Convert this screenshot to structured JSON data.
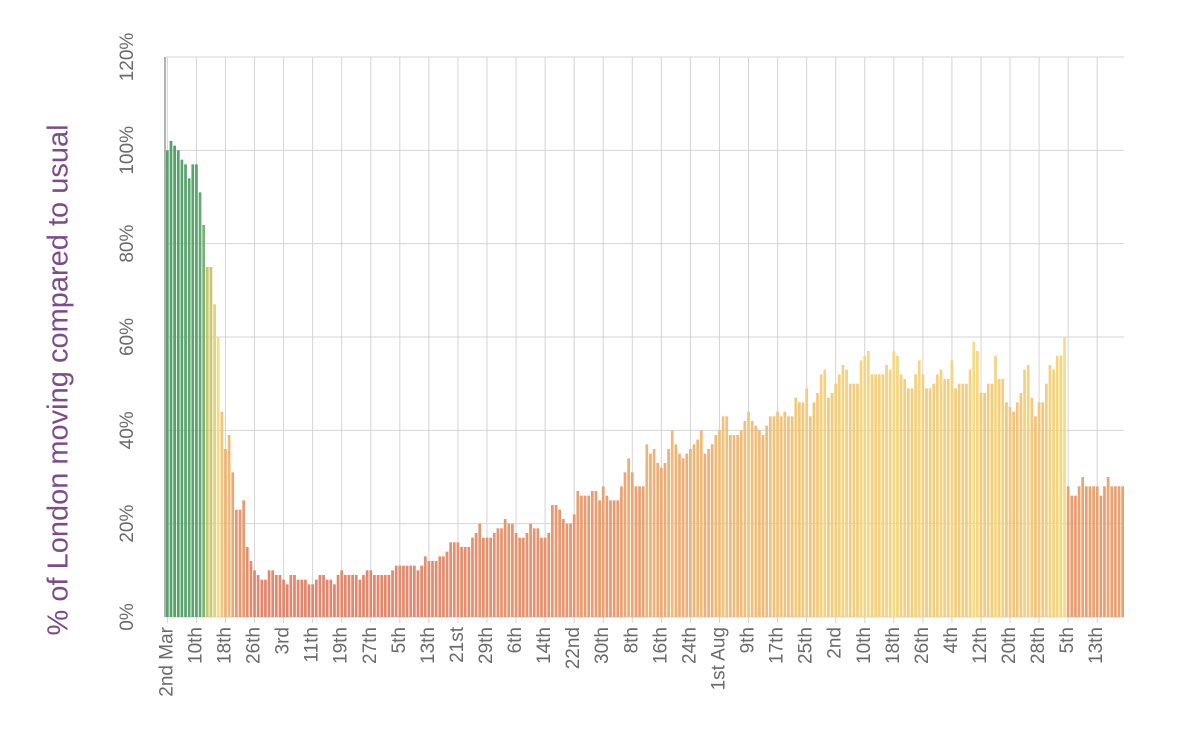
{
  "chart_data": {
    "type": "bar",
    "y_label": "% of London moving compared to usual",
    "categories": [
      "2nd Mar",
      null,
      null,
      null,
      null,
      null,
      null,
      null,
      "10th",
      null,
      null,
      null,
      null,
      null,
      null,
      null,
      "18th",
      null,
      null,
      null,
      null,
      null,
      null,
      null,
      "26th",
      null,
      null,
      null,
      null,
      null,
      null,
      null,
      "3rd",
      null,
      null,
      null,
      null,
      null,
      null,
      null,
      "11th",
      null,
      null,
      null,
      null,
      null,
      null,
      null,
      "19th",
      null,
      null,
      null,
      null,
      null,
      null,
      null,
      "27th",
      null,
      null,
      null,
      null,
      null,
      null,
      null,
      "5th",
      null,
      null,
      null,
      null,
      null,
      null,
      null,
      "13th",
      null,
      null,
      null,
      null,
      null,
      null,
      null,
      "21st",
      null,
      null,
      null,
      null,
      null,
      null,
      null,
      "29th",
      null,
      null,
      null,
      null,
      null,
      null,
      null,
      "6th",
      null,
      null,
      null,
      null,
      null,
      null,
      null,
      "14th",
      null,
      null,
      null,
      null,
      null,
      null,
      null,
      "22nd",
      null,
      null,
      null,
      null,
      null,
      null,
      null,
      "30th",
      null,
      null,
      null,
      null,
      null,
      null,
      null,
      "8th",
      null,
      null,
      null,
      null,
      null,
      null,
      null,
      "16th",
      null,
      null,
      null,
      null,
      null,
      null,
      null,
      "24th",
      null,
      null,
      null,
      null,
      null,
      null,
      null,
      "1st Aug",
      null,
      null,
      null,
      null,
      null,
      null,
      null,
      "9th",
      null,
      null,
      null,
      null,
      null,
      null,
      null,
      "17th",
      null,
      null,
      null,
      null,
      null,
      null,
      null,
      "25th",
      null,
      null,
      null,
      null,
      null,
      null,
      null,
      "2nd",
      null,
      null,
      null,
      null,
      null,
      null,
      null,
      "10th",
      null,
      null,
      null,
      null,
      null,
      null,
      null,
      "18th",
      null,
      null,
      null,
      null,
      null,
      null,
      null,
      "26th",
      null,
      null,
      null,
      null,
      null,
      null,
      null,
      "4th",
      null,
      null,
      null,
      null,
      null,
      null,
      null,
      "12th",
      null,
      null,
      null,
      null,
      null,
      null,
      null,
      "20th",
      null,
      null,
      null,
      null,
      null,
      null,
      null,
      "28th",
      null,
      null,
      null,
      null,
      null,
      null,
      null,
      "5th",
      null,
      null,
      null,
      null,
      null,
      null,
      null,
      "13th",
      null,
      null,
      null,
      null,
      null,
      null,
      null
    ],
    "values": [
      100,
      102,
      101,
      100,
      98,
      97,
      94,
      97,
      97,
      91,
      84,
      75,
      75,
      67,
      60,
      44,
      36,
      39,
      31,
      23,
      23,
      25,
      15,
      12,
      10,
      9,
      8,
      8,
      10,
      10,
      9,
      9,
      8,
      7,
      9,
      9,
      8,
      8,
      8,
      7,
      7,
      8,
      9,
      9,
      8,
      8,
      7,
      9,
      10,
      9,
      9,
      9,
      9,
      8,
      9,
      10,
      10,
      9,
      9,
      9,
      9,
      9,
      10,
      11,
      11,
      11,
      11,
      11,
      11,
      10,
      11,
      13,
      12,
      12,
      12,
      13,
      13,
      14,
      16,
      16,
      16,
      15,
      15,
      15,
      17,
      18,
      20,
      17,
      17,
      17,
      18,
      19,
      19,
      21,
      20,
      20,
      18,
      17,
      17,
      18,
      20,
      19,
      19,
      17,
      17,
      18,
      24,
      24,
      23,
      21,
      20,
      20,
      22,
      27,
      26,
      26,
      26,
      27,
      27,
      25,
      28,
      26,
      25,
      25,
      25,
      28,
      31,
      34,
      31,
      28,
      28,
      28,
      37,
      35,
      36,
      33,
      32,
      33,
      36,
      40,
      37,
      35,
      34,
      35,
      36,
      37,
      38,
      40,
      35,
      36,
      37,
      39,
      40,
      43,
      43,
      39,
      39,
      39,
      40,
      42,
      44,
      42,
      41,
      40,
      39,
      41,
      43,
      43,
      44,
      43,
      44,
      43,
      43,
      47,
      46,
      46,
      49,
      43,
      46,
      48,
      52,
      53,
      47,
      48,
      50,
      52,
      54,
      53,
      50,
      50,
      50,
      55,
      56,
      57,
      52,
      52,
      52,
      52,
      54,
      53,
      57,
      56,
      52,
      51,
      49,
      49,
      52,
      55,
      52,
      49,
      49,
      50,
      52,
      53,
      51,
      51,
      55,
      49,
      50,
      50,
      50,
      53,
      59,
      57,
      48,
      48,
      50,
      50,
      56,
      51,
      51,
      46,
      45,
      44,
      46,
      48,
      53,
      54,
      47,
      43,
      46,
      46,
      50,
      54,
      53,
      56,
      56,
      60,
      28,
      26,
      26,
      28,
      30,
      28,
      28,
      28,
      28,
      26,
      28,
      30,
      28,
      28,
      28,
      28
    ],
    "color_scale": [
      [
        0,
        "#e07c6b"
      ],
      [
        25,
        "#e99a70"
      ],
      [
        45,
        "#f2c67c"
      ],
      [
        60,
        "#f6dc82"
      ],
      [
        75,
        "#c9c672"
      ],
      [
        85,
        "#70b07a"
      ],
      [
        100,
        "#55a06b"
      ]
    ],
    "ylim": [
      0,
      120
    ],
    "yticks": [
      {
        "value": 0,
        "label": "0%"
      },
      {
        "value": 20,
        "label": "20%"
      },
      {
        "value": 40,
        "label": "40%"
      },
      {
        "value": 60,
        "label": "60%"
      },
      {
        "value": 80,
        "label": "80%"
      },
      {
        "value": 100,
        "label": "100%"
      },
      {
        "value": 120,
        "label": "120%"
      }
    ],
    "grid": true
  }
}
